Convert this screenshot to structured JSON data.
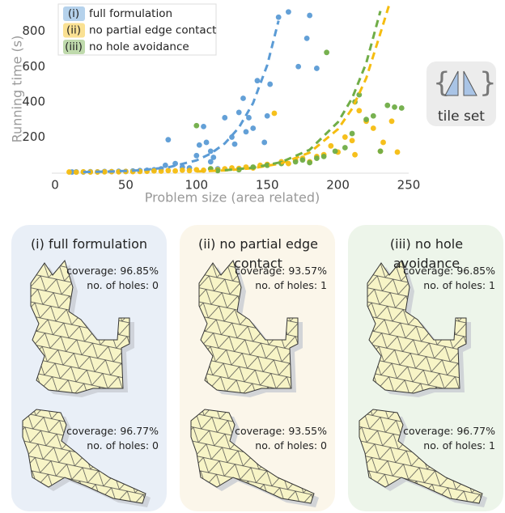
{
  "chart_data": {
    "type": "scatter",
    "x_label": "Problem size (area related)",
    "y_label": "Running time (s)",
    "xlim": [
      0,
      250
    ],
    "ylim": [
      0,
      950
    ],
    "xticks": [
      0,
      50,
      100,
      150,
      200,
      250
    ],
    "yticks": [
      200,
      400,
      600,
      800
    ],
    "series": [
      {
        "tag": "(i)",
        "name": "full formulation",
        "color": "#5b9bd5",
        "x": [
          12,
          15,
          20,
          25,
          30,
          35,
          40,
          45,
          50,
          55,
          60,
          65,
          70,
          75,
          78,
          80,
          85,
          90,
          95,
          100,
          102,
          105,
          107,
          110,
          110,
          112,
          115,
          120,
          125,
          127,
          130,
          133,
          135,
          137,
          140,
          143,
          148,
          150,
          152,
          158,
          165,
          172,
          178,
          180,
          185
        ],
        "values": [
          2,
          3,
          2,
          4,
          3,
          5,
          4,
          6,
          5,
          8,
          10,
          12,
          15,
          20,
          40,
          185,
          50,
          30,
          25,
          95,
          155,
          260,
          170,
          60,
          120,
          85,
          20,
          310,
          200,
          160,
          340,
          420,
          230,
          310,
          250,
          520,
          170,
          320,
          500,
          880,
          910,
          600,
          760,
          890,
          590
        ],
        "fit_x": [
          20,
          40,
          60,
          80,
          100,
          110,
          120,
          130,
          140,
          150,
          158
        ],
        "fit_values": [
          2,
          4.8,
          11.7,
          28.2,
          68,
          106,
          164,
          254,
          393,
          608,
          860
        ]
      },
      {
        "tag": "(ii)",
        "name": "no partial edge contact",
        "color": "#f5bd10",
        "x": [
          10,
          15,
          20,
          25,
          30,
          35,
          40,
          45,
          50,
          55,
          60,
          65,
          70,
          75,
          80,
          85,
          90,
          95,
          100,
          105,
          110,
          115,
          120,
          125,
          130,
          135,
          140,
          145,
          150,
          155,
          160,
          165,
          170,
          175,
          180,
          185,
          190,
          195,
          200,
          205,
          210,
          212,
          215,
          220,
          225,
          230,
          232,
          238,
          242
        ],
        "values": [
          2,
          1,
          3,
          2,
          2,
          3,
          4,
          3,
          5,
          4,
          5,
          6,
          8,
          7,
          10,
          8,
          12,
          10,
          15,
          12,
          20,
          15,
          20,
          25,
          22,
          30,
          25,
          40,
          45,
          335,
          60,
          50,
          70,
          80,
          60,
          90,
          100,
          150,
          115,
          200,
          180,
          100,
          350,
          290,
          250,
          120,
          170,
          290,
          115
        ],
        "fit_x": [
          100,
          120,
          140,
          160,
          180,
          200,
          210,
          220,
          230,
          236
        ],
        "fit_values": [
          5,
          10.9,
          23.7,
          51,
          112,
          245,
          361,
          534,
          789,
          945
        ]
      },
      {
        "tag": "(iii)",
        "name": "no hole avoidance",
        "color": "#70ad47",
        "x": [
          100,
          110,
          115,
          130,
          140,
          150,
          160,
          170,
          175,
          180,
          185,
          190,
          192,
          198,
          205,
          210,
          212,
          215,
          220,
          225,
          230,
          235,
          240,
          245
        ],
        "values": [
          265,
          20,
          10,
          15,
          30,
          40,
          50,
          60,
          70,
          55,
          80,
          90,
          680,
          120,
          140,
          220,
          400,
          440,
          300,
          320,
          120,
          380,
          370,
          365
        ],
        "fit_x": [
          120,
          140,
          160,
          180,
          200,
          210,
          220,
          230
        ],
        "fit_values": [
          12,
          26,
          58,
          128,
          285,
          420,
          620,
          915
        ]
      }
    ]
  },
  "tile_set": {
    "label": "tile set"
  },
  "panels": [
    {
      "title": "(i) full formulation",
      "shapes": [
        {
          "coverage": "coverage: 96.85%",
          "holes": "no. of holes: 0"
        },
        {
          "coverage": "coverage: 96.77%",
          "holes": "no. of holes: 0"
        }
      ]
    },
    {
      "title": "(ii) no partial edge contact",
      "shapes": [
        {
          "coverage": "coverage: 93.57%",
          "holes": "no. of holes: 1"
        },
        {
          "coverage": "coverage: 93.55%",
          "holes": "no. of holes: 0"
        }
      ]
    },
    {
      "title": "(iii) no hole avoidance",
      "shapes": [
        {
          "coverage": "coverage: 96.85%",
          "holes": "no. of holes: 1"
        },
        {
          "coverage": "coverage: 96.77%",
          "holes": "no. of holes: 1"
        }
      ]
    }
  ]
}
